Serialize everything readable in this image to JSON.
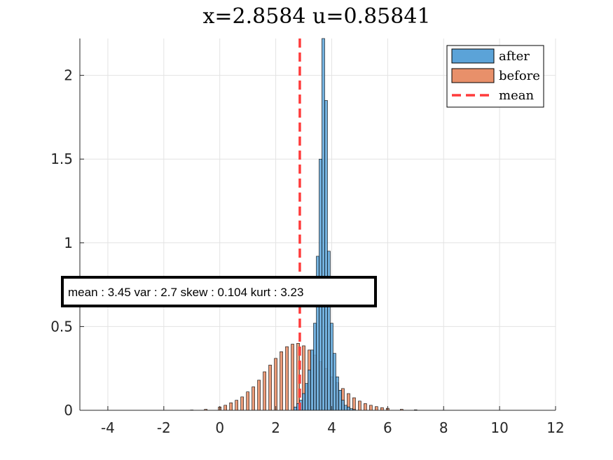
{
  "chart_data": {
    "type": "bar",
    "title": "x=2.8584  u=0.85841",
    "xlim": [
      -5,
      12
    ],
    "ylim": [
      0,
      2.22
    ],
    "xticks": [
      -4,
      -2,
      0,
      2,
      4,
      6,
      8,
      10,
      12
    ],
    "yticks": [
      0,
      0.5,
      1,
      1.5,
      2
    ],
    "grid": true,
    "legend_position": "top-right",
    "annotation": "mean : 3.45 var : 2.7 skew : 0.104 kurt : 3.23",
    "mean_line": {
      "name": "mean",
      "x": 2.86,
      "color": "#ff3b3b"
    },
    "series": [
      {
        "name": "after",
        "color": "#5ba3d8",
        "bin_width": 0.1,
        "x": [
          2.7,
          2.8,
          2.9,
          3.0,
          3.1,
          3.2,
          3.3,
          3.4,
          3.5,
          3.6,
          3.7,
          3.8,
          3.9,
          4.0,
          4.1,
          4.2,
          4.3,
          4.4,
          4.5,
          4.6,
          4.7,
          4.8
        ],
        "values": [
          0.02,
          0.04,
          0.06,
          0.1,
          0.16,
          0.24,
          0.36,
          0.52,
          0.92,
          1.5,
          2.22,
          1.85,
          0.95,
          0.52,
          0.34,
          0.2,
          0.12,
          0.06,
          0.03,
          0.02,
          0.01,
          0.005
        ]
      },
      {
        "name": "before",
        "color": "#e8906a",
        "bin_width": 0.1,
        "x": [
          -1.0,
          -0.5,
          0.0,
          0.2,
          0.4,
          0.6,
          0.8,
          1.0,
          1.2,
          1.4,
          1.6,
          1.8,
          2.0,
          2.2,
          2.4,
          2.6,
          2.8,
          3.0,
          3.2,
          3.4,
          3.6,
          3.8,
          4.0,
          4.2,
          4.4,
          4.6,
          4.8,
          5.0,
          5.2,
          5.4,
          5.6,
          5.8,
          6.0,
          6.5,
          7.0,
          8.0
        ],
        "values": [
          0.002,
          0.006,
          0.02,
          0.03,
          0.045,
          0.06,
          0.08,
          0.11,
          0.14,
          0.18,
          0.23,
          0.27,
          0.31,
          0.35,
          0.38,
          0.395,
          0.4,
          0.385,
          0.36,
          0.33,
          0.29,
          0.25,
          0.2,
          0.165,
          0.13,
          0.1,
          0.075,
          0.055,
          0.04,
          0.03,
          0.022,
          0.016,
          0.012,
          0.006,
          0.003,
          0.001
        ]
      }
    ]
  }
}
